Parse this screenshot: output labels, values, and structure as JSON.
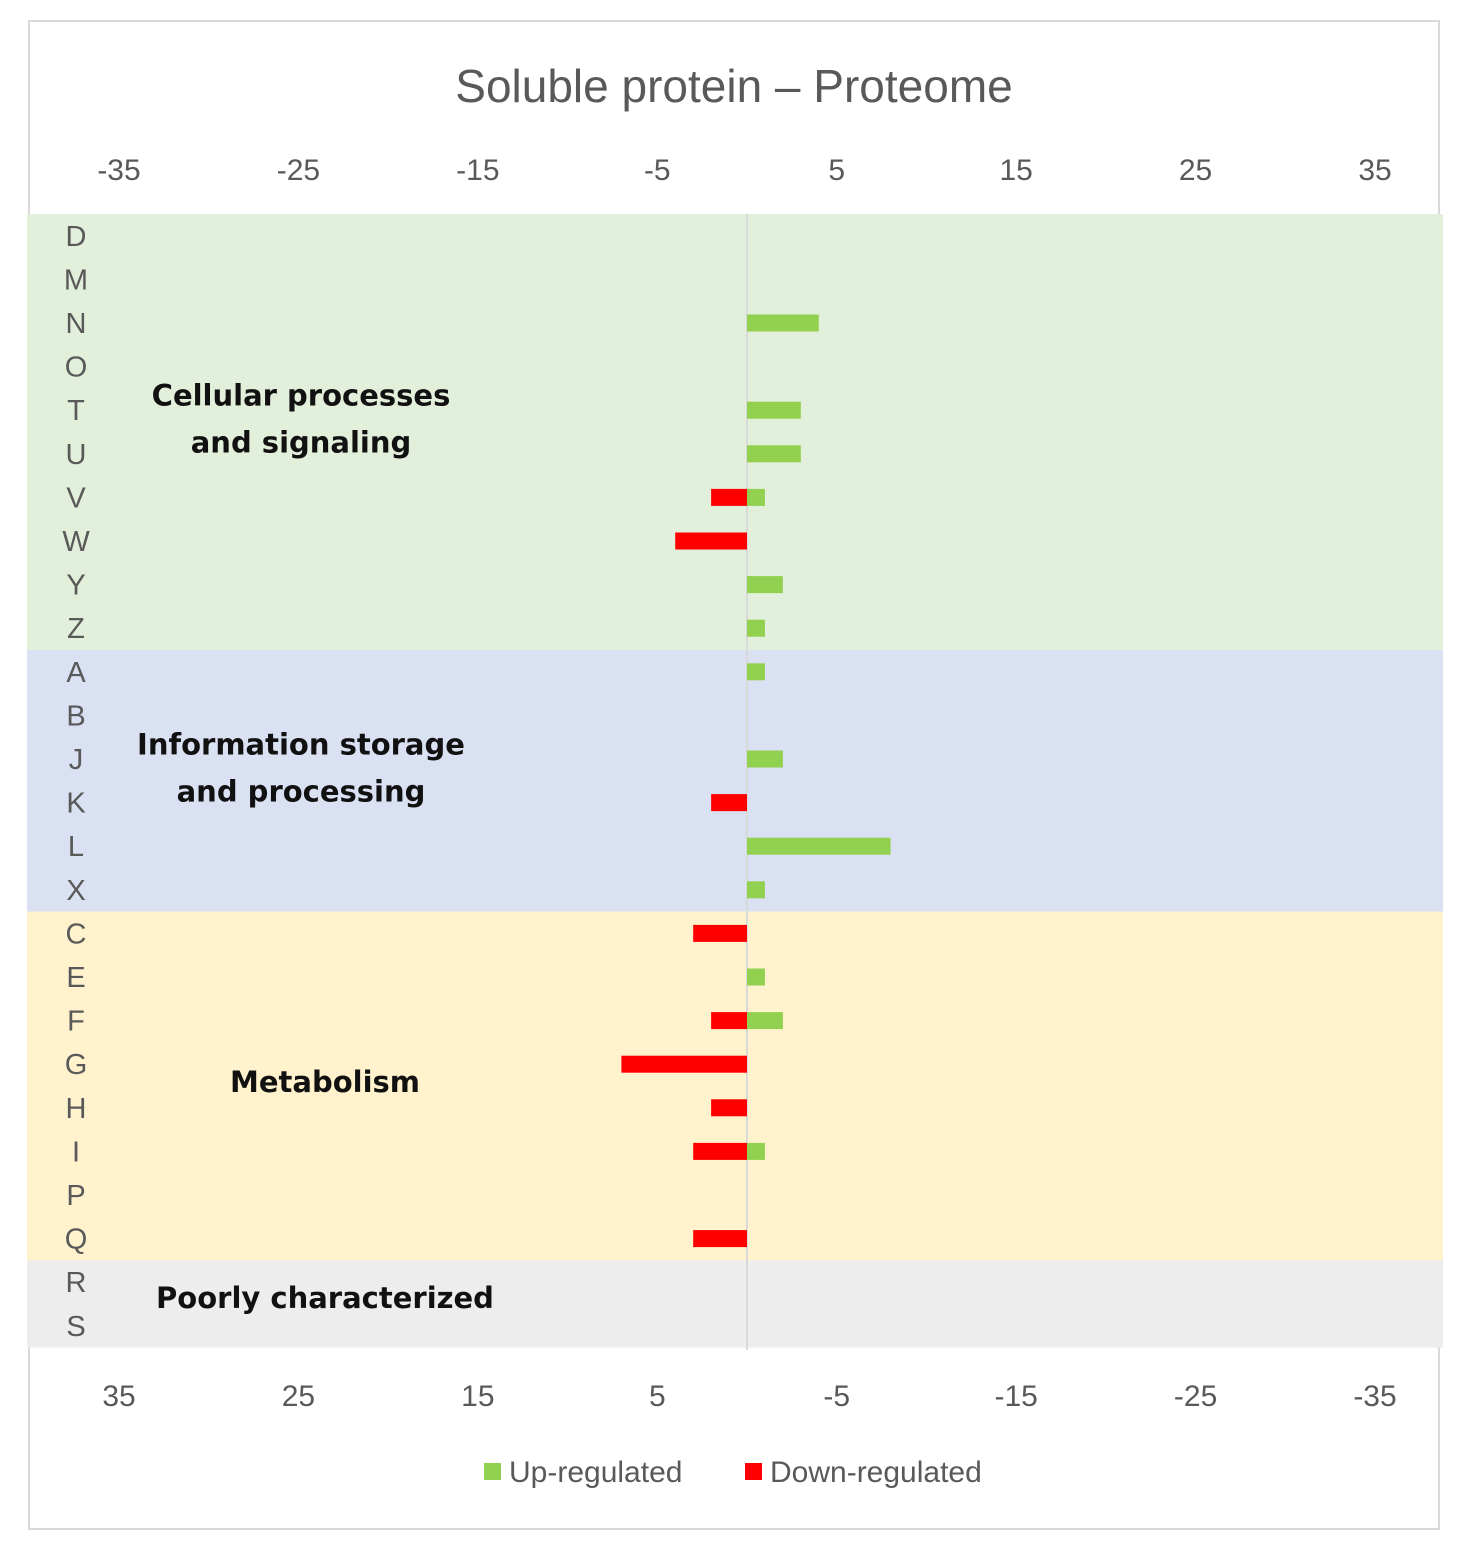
{
  "chart_data": {
    "type": "bar",
    "orientation": "horizontal",
    "title": "Soluble protein – Proteome",
    "top_axis_ticks": [
      "-35",
      "-25",
      "-15",
      "-5",
      "5",
      "15",
      "25",
      "35"
    ],
    "bottom_axis_ticks": [
      "35",
      "25",
      "15",
      "5",
      "-5",
      "-15",
      "-25",
      "-35"
    ],
    "xlim": [
      -35,
      35
    ],
    "categories": [
      "D",
      "M",
      "N",
      "O",
      "T",
      "U",
      "V",
      "W",
      "Y",
      "Z",
      "A",
      "B",
      "J",
      "K",
      "L",
      "X",
      "C",
      "E",
      "F",
      "G",
      "H",
      "I",
      "P",
      "Q",
      "R",
      "S"
    ],
    "series": [
      {
        "name": "Up-regulated",
        "color": "#92d050",
        "values": [
          0,
          0,
          4,
          0,
          3,
          3,
          1,
          0,
          2,
          1,
          1,
          0,
          2,
          0,
          8,
          1,
          0,
          1,
          2,
          0,
          0,
          1,
          0,
          0,
          0,
          0
        ]
      },
      {
        "name": "Down-regulated",
        "color": "#ff0000",
        "values": [
          0,
          0,
          0,
          0,
          0,
          0,
          2,
          4,
          0,
          0,
          0,
          0,
          0,
          2,
          0,
          0,
          3,
          0,
          2,
          7,
          2,
          3,
          0,
          3,
          0,
          0
        ]
      }
    ],
    "groups": [
      {
        "lines": [
          "Cellular processes",
          "and signaling"
        ],
        "first": "D",
        "last": "Z",
        "color": "#e2efda"
      },
      {
        "lines": [
          "Information storage",
          "and processing"
        ],
        "first": "A",
        "last": "X",
        "color": "#d9e1f2"
      },
      {
        "lines": [
          "Metabolism"
        ],
        "first": "C",
        "last": "Q",
        "color": "#fff2cc"
      },
      {
        "lines": [
          "Poorly characterized"
        ],
        "first": "R",
        "last": "S",
        "color": "#ededed"
      }
    ],
    "legend": {
      "position": "bottom"
    }
  }
}
